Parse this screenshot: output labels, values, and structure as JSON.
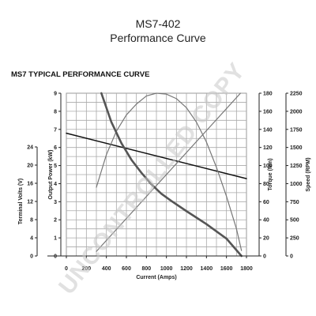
{
  "page": {
    "title": "MS7-402",
    "subtitle": "Performance Curve",
    "watermark": "UNCONTROLLED COPY"
  },
  "chart_data": {
    "type": "line",
    "title": "MS7 TYPICAL PERFORMANCE CURVE",
    "xlabel": "Current (Amps)",
    "xlim": [
      0,
      1800
    ],
    "x_ticks": [
      0,
      200,
      400,
      600,
      800,
      1000,
      1200,
      1400,
      1600,
      1800
    ],
    "axes": {
      "volts": {
        "label": "Terminal Volts (V)",
        "lim": [
          0,
          24
        ],
        "ticks": [
          0,
          4,
          8,
          12,
          16,
          20,
          24
        ]
      },
      "power": {
        "label": "Output Power (kW)",
        "lim": [
          0,
          9
        ],
        "ticks": [
          0,
          1,
          2,
          3,
          4,
          5,
          6,
          7,
          8,
          9
        ]
      },
      "torque": {
        "label": "Torque (Nm)",
        "lim": [
          0,
          180
        ],
        "ticks": [
          0,
          20,
          40,
          60,
          80,
          100,
          120,
          140,
          160,
          180
        ]
      },
      "speed": {
        "label": "Speed (RPM)",
        "lim": [
          0,
          2250
        ],
        "ticks": [
          0,
          250,
          500,
          750,
          1000,
          1250,
          1500,
          1750,
          2000,
          2250
        ]
      }
    },
    "series": [
      {
        "axis": "volts",
        "color": "#111111",
        "width": 1.5,
        "x": [
          0,
          1800
        ],
        "y": [
          18.1,
          11.4
        ]
      },
      {
        "axis": "power",
        "color": "#777777",
        "width": 1.2,
        "x": [
          300,
          400,
          500,
          600,
          700,
          800,
          900,
          1000,
          1100,
          1200,
          1300,
          1400,
          1500,
          1600,
          1700,
          1750
        ],
        "y": [
          3.8,
          5.6,
          6.9,
          7.8,
          8.4,
          8.85,
          9.0,
          8.95,
          8.7,
          8.2,
          7.4,
          6.3,
          4.9,
          3.3,
          1.5,
          0.3
        ]
      },
      {
        "axis": "torque",
        "color": "#777777",
        "width": 1.2,
        "x": [
          300,
          1740
        ],
        "y": [
          5,
          180
        ]
      },
      {
        "axis": "speed",
        "color": "#555555",
        "width": 2.6,
        "x": [
          350,
          450,
          550,
          650,
          750,
          850,
          950,
          1050,
          1200,
          1400,
          1600,
          1750
        ],
        "y": [
          2250,
          1850,
          1560,
          1330,
          1150,
          990,
          860,
          760,
          620,
          440,
          240,
          0
        ]
      }
    ]
  }
}
